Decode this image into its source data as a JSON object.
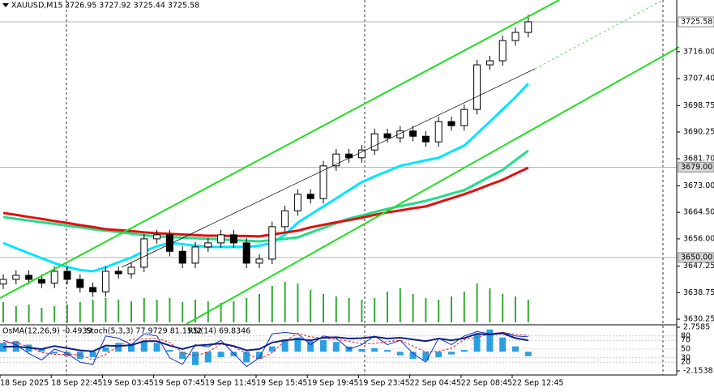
{
  "chart_data": [
    {
      "type": "candlestick",
      "header": {
        "symbol": "XAUUSD,M15",
        "ohlc": "3726.95 3727.92 3725.44 3725.58"
      },
      "categories": [
        "18 Sep 2025",
        null,
        null,
        null,
        "18 Sep 22:45",
        null,
        null,
        null,
        "19 Sep 03:45",
        null,
        null,
        null,
        "19 Sep 07:45",
        null,
        null,
        null,
        "19 Sep 11:45",
        null,
        null,
        null,
        "19 Sep 15:45",
        null,
        null,
        null,
        "19 Sep 19:45",
        null,
        null,
        null,
        "19 Sep 23:45",
        null,
        null,
        null,
        "22 Sep 04:45",
        null,
        null,
        null,
        "22 Sep 08:45",
        null,
        null,
        null,
        "22 Sep 12:45",
        null
      ],
      "open": [
        3641.5,
        3643.0,
        3644.3,
        3643.0,
        3641.8,
        3645.6,
        3643.0,
        3640.4,
        3639.0,
        3645.6,
        3644.8,
        3646.9,
        3656.0,
        3657.3,
        3652.0,
        3648.2,
        3653.4,
        3654.7,
        3657.3,
        3654.7,
        3648.2,
        3649.5,
        3659.9,
        3665.0,
        3670.3,
        3668.9,
        3679.4,
        3683.2,
        3682.0,
        3684.5,
        3689.7,
        3688.4,
        3690.6,
        3688.9,
        3687.1,
        3693.6,
        3692.3,
        3697.5,
        3711.8,
        3713.1,
        3719.6,
        3722.2
      ],
      "high": [
        3644.6,
        3645.9,
        3645.9,
        3644.6,
        3647.2,
        3647.2,
        3644.6,
        3642.0,
        3647.2,
        3647.2,
        3648.5,
        3657.6,
        3658.9,
        3658.9,
        3653.6,
        3655.0,
        3656.3,
        3658.9,
        3658.9,
        3656.3,
        3651.1,
        3661.5,
        3666.6,
        3671.9,
        3671.9,
        3681.0,
        3684.8,
        3684.8,
        3686.1,
        3691.3,
        3691.3,
        3692.2,
        3692.2,
        3690.5,
        3695.2,
        3695.2,
        3699.1,
        3713.4,
        3714.7,
        3721.2,
        3723.8,
        3727.9
      ],
      "low": [
        3639.9,
        3641.4,
        3641.4,
        3640.2,
        3640.2,
        3641.4,
        3638.8,
        3637.4,
        3637.4,
        3643.2,
        3643.2,
        3645.3,
        3654.4,
        3650.4,
        3646.6,
        3646.6,
        3651.8,
        3653.1,
        3653.1,
        3646.6,
        3646.6,
        3647.9,
        3658.3,
        3663.4,
        3667.3,
        3667.3,
        3677.8,
        3680.4,
        3680.4,
        3682.9,
        3686.8,
        3686.8,
        3687.3,
        3685.5,
        3685.5,
        3690.7,
        3690.7,
        3695.9,
        3710.2,
        3711.5,
        3718.0,
        3720.6
      ],
      "close": [
        3643.0,
        3644.3,
        3643.0,
        3641.8,
        3645.6,
        3643.0,
        3640.4,
        3639.0,
        3645.6,
        3644.8,
        3646.9,
        3656.0,
        3657.3,
        3652.0,
        3648.2,
        3653.4,
        3654.7,
        3657.3,
        3654.7,
        3648.2,
        3649.5,
        3659.9,
        3665.0,
        3670.3,
        3668.9,
        3679.4,
        3683.2,
        3682.0,
        3684.5,
        3689.7,
        3688.4,
        3690.6,
        3688.9,
        3687.1,
        3693.6,
        3692.3,
        3697.5,
        3711.8,
        3713.1,
        3719.6,
        3722.2,
        3725.6
      ],
      "volume": [
        25,
        20,
        22,
        18,
        20,
        22,
        25,
        28,
        30,
        28,
        26,
        30,
        28,
        30,
        25,
        28,
        26,
        24,
        26,
        30,
        35,
        45,
        50,
        48,
        40,
        35,
        32,
        30,
        28,
        30,
        38,
        42,
        35,
        30,
        28,
        32,
        38,
        48,
        42,
        35,
        32,
        28
      ],
      "volume_color": "#33aa33",
      "moving_averages": [
        {
          "color": "#00e5ff",
          "values": [
            3654.7,
            3653,
            3651.4,
            3649.8,
            3648.2,
            3647,
            3646,
            3645.6,
            3646.9,
            3648.5,
            3650,
            3652,
            3653.6,
            3654.7,
            3654.3,
            3653.8,
            3653.4,
            3653.4,
            3653.4,
            3653.4,
            3653.8,
            3654.7,
            3657.3,
            3661.2,
            3663.8,
            3666.4,
            3669,
            3671.6,
            3674.2,
            3676,
            3677.7,
            3679.4,
            3680.3,
            3681.2,
            3682,
            3684,
            3685.9,
            3689.7,
            3693.6,
            3697.5,
            3701.4,
            3705.8
          ]
        },
        {
          "color": "#22dd88",
          "values": [
            3663,
            3662.4,
            3661.9,
            3661.3,
            3660.8,
            3660.2,
            3659.7,
            3659.1,
            3658.6,
            3658.2,
            3657.7,
            3657.2,
            3656.8,
            3656.6,
            3656.4,
            3656.2,
            3656,
            3655.8,
            3655.6,
            3655.4,
            3655.2,
            3655.6,
            3656,
            3656.5,
            3658,
            3659.5,
            3661,
            3662.5,
            3663.5,
            3664.6,
            3665.6,
            3666.5,
            3667.3,
            3668.2,
            3669.3,
            3670.5,
            3671.6,
            3673.8,
            3676,
            3678.1,
            3681.2,
            3684.3
          ]
        },
        {
          "color": "#e01010",
          "values": [
            3664.3,
            3663.7,
            3663,
            3662.4,
            3661.7,
            3661.1,
            3660.4,
            3659.8,
            3659.1,
            3658.8,
            3658.5,
            3658.1,
            3657.8,
            3657.6,
            3657.4,
            3657.2,
            3657,
            3657,
            3656.9,
            3656.9,
            3656.8,
            3657.4,
            3658,
            3658.6,
            3659.7,
            3660.5,
            3661.3,
            3662,
            3662.8,
            3663.7,
            3664.5,
            3665.1,
            3665.8,
            3666.4,
            3667.7,
            3669,
            3670.3,
            3671.8,
            3673.4,
            3674.9,
            3676.9,
            3678.8
          ]
        }
      ],
      "ylim": [
        3628.7,
        3732.6
      ],
      "yticks": [
        {
          "value": 3716,
          "label": "3716.00"
        },
        {
          "value": 3707.4,
          "label": "3707.40"
        },
        {
          "value": 3698.75,
          "label": "3698.75"
        },
        {
          "value": 3690.25,
          "label": "3690.25"
        },
        {
          "value": 3681.7,
          "label": "3681.70"
        },
        {
          "value": 3673,
          "label": "3673.00"
        },
        {
          "value": 3664.5,
          "label": "3664.50"
        },
        {
          "value": 3656,
          "label": "3656.00"
        },
        {
          "value": 3647.25,
          "label": "3647.25"
        },
        {
          "value": 3638.75,
          "label": "3638.75"
        },
        {
          "value": 3630.25,
          "label": "3630.25"
        }
      ],
      "price_levels": [
        {
          "value": 3725.58,
          "label": "3725.58"
        },
        {
          "value": 3679,
          "label": "3679.00"
        },
        {
          "value": 3650,
          "label": "3650.00"
        }
      ]
    },
    {
      "type": "oscillator",
      "header": [
        "OsMA(12,26,9) -0.4939",
        "Stoch(5,3,3) 77.9729 81.1532",
        "RSI(14) 69.8346"
      ],
      "osma": [
        1.0,
        1.2,
        0.8,
        0.3,
        -0.2,
        -0.5,
        -0.8,
        -0.6,
        0.5,
        1.0,
        0.9,
        1.2,
        1.0,
        0.2,
        -0.8,
        -1.5,
        -1.2,
        -0.6,
        -0.5,
        -1.2,
        -0.8,
        0.6,
        1.4,
        1.6,
        1.2,
        1.3,
        1.1,
        0.6,
        0.3,
        0.4,
        0.2,
        -0.4,
        -0.8,
        -1.0,
        -0.6,
        -0.3,
        0.2,
        2.0,
        2.5,
        1.6,
        0.6,
        -0.4939
      ],
      "osma_color": "#2aa0e0",
      "stoch_main": [
        70,
        60,
        40,
        25,
        50,
        40,
        20,
        15,
        80,
        75,
        60,
        85,
        80,
        30,
        15,
        60,
        55,
        70,
        40,
        10,
        30,
        85,
        88,
        85,
        60,
        80,
        75,
        50,
        60,
        80,
        60,
        70,
        40,
        20,
        75,
        60,
        80,
        90,
        85,
        88,
        80,
        77.9729
      ],
      "stoch_signal": [
        65,
        65,
        55,
        42,
        38,
        38,
        37,
        25,
        38,
        57,
        72,
        73,
        75,
        65,
        42,
        35,
        43,
        62,
        55,
        40,
        27,
        42,
        68,
        86,
        78,
        75,
        72,
        68,
        62,
        63,
        67,
        70,
        57,
        43,
        45,
        52,
        72,
        77,
        85,
        88,
        84,
        81.1532
      ],
      "rsi": [
        55,
        56,
        53,
        50,
        57,
        52,
        47,
        45,
        58,
        57,
        59,
        68,
        68,
        58,
        50,
        58,
        60,
        63,
        57,
        47,
        50,
        65,
        70,
        73,
        70,
        76,
        77,
        74,
        75,
        78,
        74,
        76,
        72,
        68,
        74,
        70,
        75,
        85,
        83,
        86,
        75,
        69.8346
      ],
      "stoch_colors": [
        "#1030c0",
        "#e02020"
      ],
      "rsi_color": "#102080",
      "ylim": [
        0,
        100
      ],
      "yticks": [
        80,
        70,
        50,
        30,
        20
      ],
      "y2lim": [
        -2.1538,
        2.7585
      ],
      "y2ticks": [
        2.7585,
        -2.1538
      ]
    }
  ]
}
